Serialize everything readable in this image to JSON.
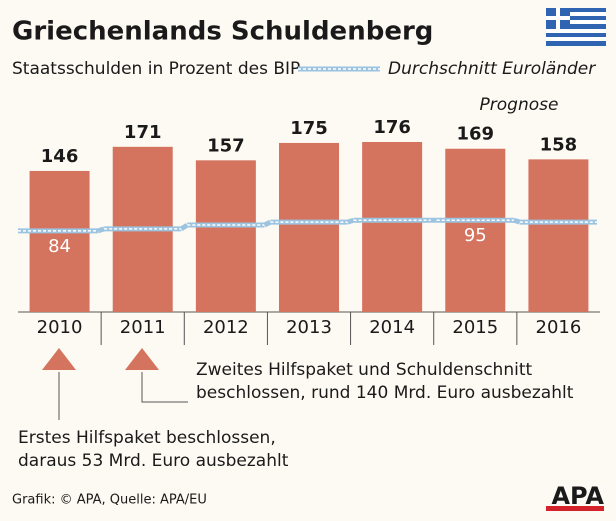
{
  "chart_data": {
    "type": "bar",
    "title": "Griechenlands Schuldenberg",
    "subtitle": "Staatsschulden in Prozent des BIP",
    "categories": [
      "2010",
      "2011",
      "2012",
      "2013",
      "2014",
      "2015",
      "2016"
    ],
    "values": [
      146,
      171,
      157,
      175,
      176,
      169,
      158
    ],
    "color": "#d4735e",
    "series": [
      {
        "name": "Durchschnitt Euroländer",
        "color": "#9cc3e0",
        "values": [
          84,
          86,
          90,
          93,
          95,
          95,
          93
        ],
        "value_labels": [
          "84",
          null,
          null,
          null,
          null,
          "95",
          null
        ]
      }
    ],
    "annotations": [
      "Prognose",
      "Zweites Hilfspaket und Schuldenschnitt",
      "beschlossen, rund 140  Mrd. Euro ausbezahlt",
      "Erstes Hilfspaket beschlossen,",
      "daraus  53 Mrd. Euro ausbezahlt"
    ],
    "source": "Grafik: © APA, Quelle: APA/EU",
    "logo": "APA"
  }
}
